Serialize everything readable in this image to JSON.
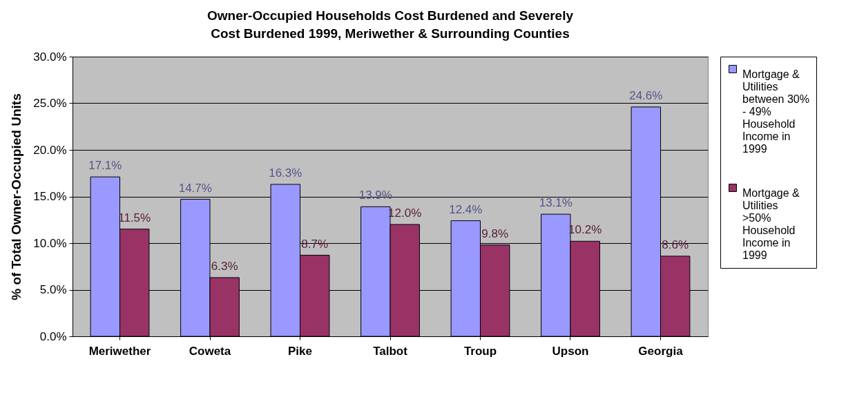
{
  "chart_data": {
    "type": "bar",
    "title": "Owner-Occupied Households Cost Burdened and Severely Cost Burdened 1999, Meriwether & Surrounding Counties",
    "ylabel": "% of Total Owner-Occupied Units",
    "categories": [
      "Meriwether",
      "Coweta",
      "Pike",
      "Talbot",
      "Troup",
      "Upson",
      "Georgia"
    ],
    "series": [
      {
        "name": "Mortgage & Utilities between 30% - 49% Household Income in 1999",
        "color": "#9999ff",
        "values": [
          17.1,
          14.7,
          16.3,
          13.9,
          12.4,
          13.1,
          24.6
        ],
        "value_labels": [
          "17.1%",
          "14.7%",
          "16.3%",
          "13.9%",
          "12.4%",
          "13.1%",
          "24.6%"
        ]
      },
      {
        "name": "Mortgage & Utilities >50% Household Income in 1999",
        "color": "#993366",
        "values": [
          11.5,
          6.3,
          8.7,
          12.0,
          9.8,
          10.2,
          8.6
        ],
        "value_labels": [
          "11.5%",
          "6.3%",
          "8.7%",
          "12.0%",
          "9.8%",
          "10.2%",
          "8.6%"
        ]
      }
    ],
    "ylim": [
      0,
      30
    ],
    "yticks": [
      {
        "value": 0,
        "label": "0.0%"
      },
      {
        "value": 5,
        "label": "5.0%"
      },
      {
        "value": 10,
        "label": "10.0%"
      },
      {
        "value": 15,
        "label": "15.0%"
      },
      {
        "value": 20,
        "label": "20.0%"
      },
      {
        "value": 25,
        "label": "25.0%"
      },
      {
        "value": 30,
        "label": "30.0%"
      }
    ],
    "grid": "y",
    "legend": "right"
  }
}
